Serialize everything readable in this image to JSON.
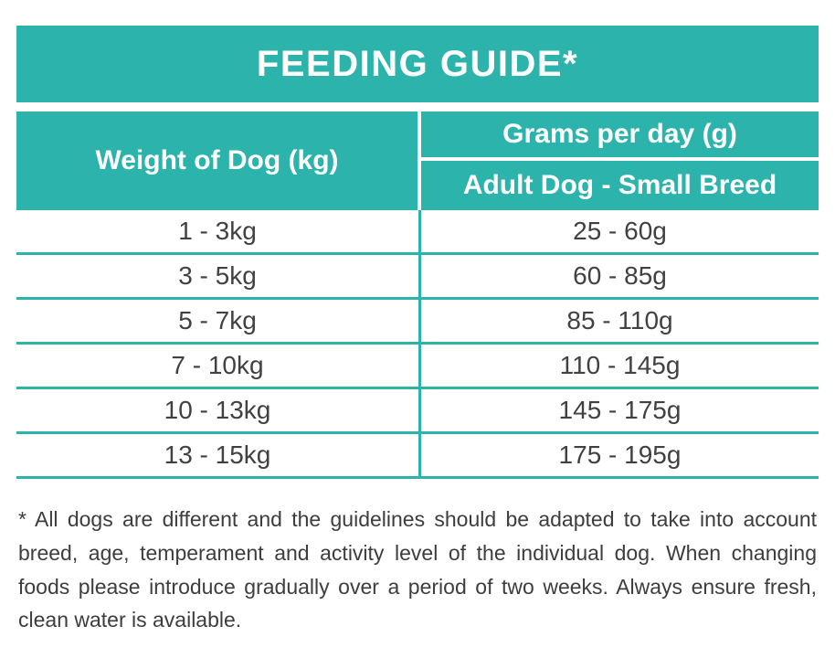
{
  "colors": {
    "teal": "#2bb3ac",
    "text_dark": "#414042",
    "white": "#ffffff"
  },
  "banner": {
    "title": "FEEDING GUIDE*"
  },
  "table": {
    "weight_header": "Weight of Dog (kg)",
    "grams_header": "Grams per day (g)",
    "breed_header": "Adult Dog - Small Breed",
    "rows": [
      {
        "weight": "1 - 3kg",
        "grams": "25 - 60g"
      },
      {
        "weight": "3 - 5kg",
        "grams": "60 - 85g"
      },
      {
        "weight": "5 - 7kg",
        "grams": "85 - 110g"
      },
      {
        "weight": "7 - 10kg",
        "grams": "110 - 145g"
      },
      {
        "weight": "10 - 13kg",
        "grams": "145 - 175g"
      },
      {
        "weight": "13 - 15kg",
        "grams": "175 - 195g"
      }
    ]
  },
  "footnote": "* All dogs are different and the guidelines should be adapted to take into account breed, age, temperament and activity level of the individual dog. When changing foods please introduce gradually over a period of two weeks. Always ensure fresh, clean water is available.",
  "chart_data": {
    "type": "table",
    "title": "FEEDING GUIDE*",
    "columns": [
      "Weight of Dog (kg)",
      "Grams per day (g) - Adult Dog - Small Breed"
    ],
    "rows": [
      [
        "1 - 3kg",
        "25 - 60g"
      ],
      [
        "3 - 5kg",
        "60 - 85g"
      ],
      [
        "5 - 7kg",
        "85 - 110g"
      ],
      [
        "7 - 10kg",
        "110 - 145g"
      ],
      [
        "10 - 13kg",
        "145 - 175g"
      ],
      [
        "13 - 15kg",
        "175 - 195g"
      ]
    ],
    "footnote": "* All dogs are different and the guidelines should be adapted to take into account breed, age, temperament and activity level of the individual dog. When changing foods please introduce gradually over a period of two weeks. Always ensure fresh, clean water is available."
  }
}
